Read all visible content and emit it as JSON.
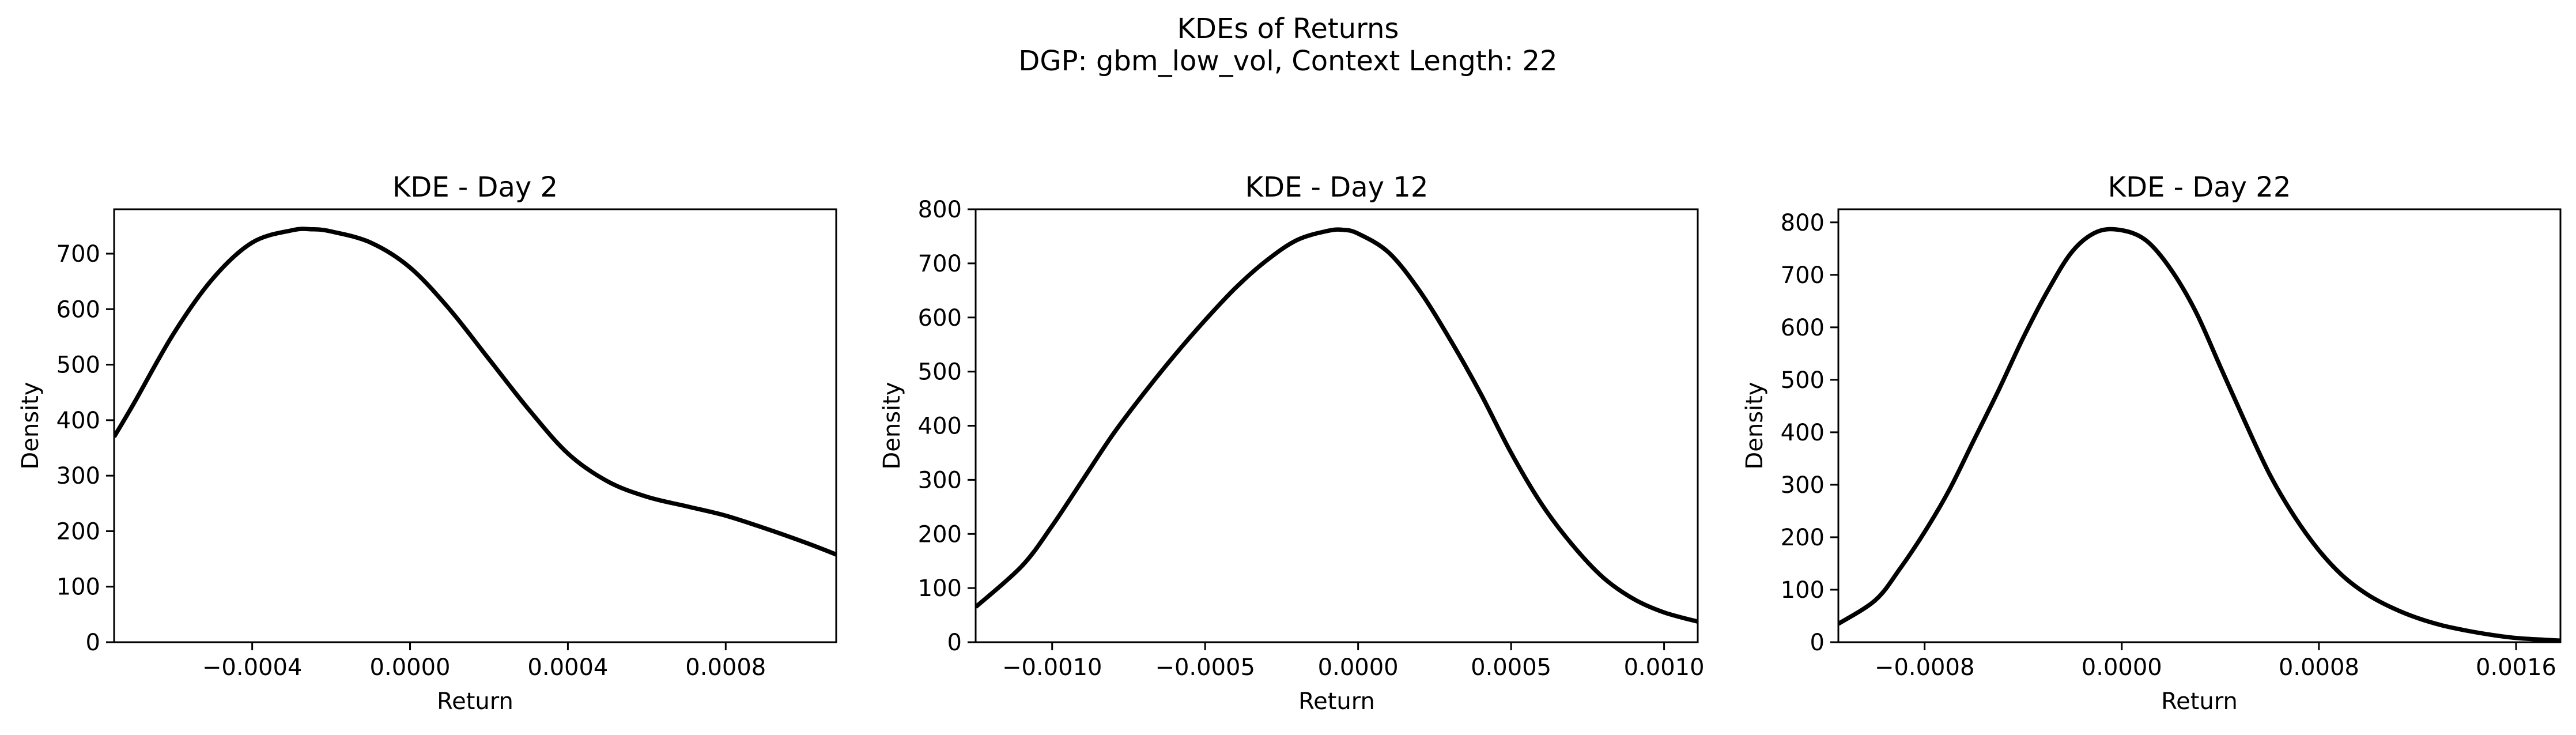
{
  "figure": {
    "title_lines": [
      "KDEs of Returns",
      "DGP: gbm_low_vol, Context Length: 22"
    ]
  },
  "chart_data": [
    {
      "type": "line",
      "title": "KDE - Day 2",
      "xlabel": "Return",
      "ylabel": "Density",
      "xlim": [
        -0.00075,
        0.00108
      ],
      "ylim": [
        0,
        780
      ],
      "xticks": [
        -0.0004,
        0.0,
        0.0004,
        0.0008
      ],
      "xtick_labels": [
        "−0.0004",
        "0.0000",
        "0.0004",
        "0.0008"
      ],
      "yticks": [
        0,
        100,
        200,
        300,
        400,
        500,
        600,
        700
      ],
      "ytick_labels": [
        "0",
        "100",
        "200",
        "300",
        "400",
        "500",
        "600",
        "700"
      ],
      "grid": false,
      "series": [
        {
          "color": "#000000",
          "x": [
            -0.00075,
            -0.0007,
            -0.0006,
            -0.0005,
            -0.0004,
            -0.0003,
            -0.00025,
            -0.0002,
            -0.0001,
            0.0,
            0.0001,
            0.0002,
            0.0003,
            0.0004,
            0.0005,
            0.0006,
            0.0007,
            0.0008,
            0.0009,
            0.001,
            0.00108
          ],
          "y": [
            370,
            430,
            555,
            655,
            720,
            742,
            744,
            740,
            720,
            675,
            600,
            510,
            420,
            340,
            290,
            262,
            245,
            228,
            205,
            180,
            158
          ]
        }
      ]
    },
    {
      "type": "line",
      "title": "KDE - Day 12",
      "xlabel": "Return",
      "ylabel": "Density",
      "xlim": [
        -0.00125,
        0.00111
      ],
      "ylim": [
        0,
        800
      ],
      "xticks": [
        -0.001,
        -0.0005,
        0.0,
        0.0005,
        0.001
      ],
      "xtick_labels": [
        "−0.0010",
        "−0.0005",
        "0.0000",
        "0.0005",
        "0.0010"
      ],
      "yticks": [
        0,
        100,
        200,
        300,
        400,
        500,
        600,
        700,
        800
      ],
      "ytick_labels": [
        "0",
        "100",
        "200",
        "300",
        "400",
        "500",
        "600",
        "700",
        "800"
      ],
      "grid": false,
      "series": [
        {
          "color": "#000000",
          "x": [
            -0.00125,
            -0.0011,
            -0.001,
            -0.0009,
            -0.0008,
            -0.0007,
            -0.0006,
            -0.0005,
            -0.0004,
            -0.0003,
            -0.0002,
            -0.0001,
            -5e-05,
            0.0,
            0.0001,
            0.0002,
            0.0003,
            0.0004,
            0.0005,
            0.0006,
            0.0007,
            0.0008,
            0.0009,
            0.001,
            0.00111
          ],
          "y": [
            65,
            140,
            215,
            300,
            385,
            460,
            530,
            595,
            655,
            705,
            743,
            760,
            762,
            755,
            720,
            650,
            560,
            460,
            350,
            255,
            180,
            120,
            80,
            55,
            38
          ]
        }
      ]
    },
    {
      "type": "line",
      "title": "KDE - Day 22",
      "xlabel": "Return",
      "ylabel": "Density",
      "xlim": [
        -0.00115,
        0.00178
      ],
      "ylim": [
        0,
        825
      ],
      "xticks": [
        -0.0008,
        0.0,
        0.0008,
        0.0016
      ],
      "xtick_labels": [
        "−0.0008",
        "0.0000",
        "0.0008",
        "0.0016"
      ],
      "yticks": [
        0,
        100,
        200,
        300,
        400,
        500,
        600,
        700,
        800
      ],
      "ytick_labels": [
        "0",
        "100",
        "200",
        "300",
        "400",
        "500",
        "600",
        "700",
        "800"
      ],
      "grid": false,
      "series": [
        {
          "color": "#000000",
          "x": [
            -0.00115,
            -0.001,
            -0.0009,
            -0.0008,
            -0.0007,
            -0.0006,
            -0.0005,
            -0.0004,
            -0.0003,
            -0.0002,
            -0.0001,
            0.0,
            0.0001,
            0.0002,
            0.0003,
            0.0004,
            0.0005,
            0.0006,
            0.0007,
            0.0008,
            0.0009,
            0.001,
            0.0011,
            0.0012,
            0.0013,
            0.0014,
            0.0015,
            0.0016,
            0.0017,
            0.00178
          ],
          "y": [
            35,
            80,
            140,
            210,
            290,
            385,
            480,
            580,
            670,
            745,
            782,
            785,
            765,
            710,
            630,
            525,
            420,
            320,
            240,
            175,
            125,
            90,
            65,
            46,
            32,
            22,
            14,
            8,
            5,
            3
          ]
        }
      ]
    }
  ]
}
